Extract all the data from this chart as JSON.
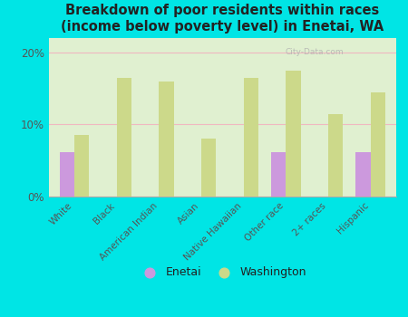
{
  "title": "Breakdown of poor residents within races\n(income below poverty level) in Enetai, WA",
  "categories": [
    "White",
    "Black",
    "American Indian",
    "Asian",
    "Native Hawaiian",
    "Other race",
    "2+ races",
    "Hispanic"
  ],
  "enetai_values": [
    6.2,
    0,
    0,
    0,
    0,
    6.2,
    0,
    6.2
  ],
  "washington_values": [
    8.5,
    16.5,
    16.0,
    8.0,
    16.5,
    17.5,
    11.5,
    14.5
  ],
  "enetai_color": "#cc99dd",
  "washington_color": "#ccd98a",
  "background_color": "#00e5e5",
  "plot_bg_top": "#f0f8e8",
  "plot_bg_bottom": "#e0f0d0",
  "ylim": [
    0,
    22
  ],
  "yticks": [
    0,
    10,
    20
  ],
  "ytick_labels": [
    "0%",
    "10%",
    "20%"
  ],
  "grid_color": "#f0b8c0",
  "title_fontsize": 10.5,
  "bar_width": 0.35,
  "watermark": "City-Data.com"
}
